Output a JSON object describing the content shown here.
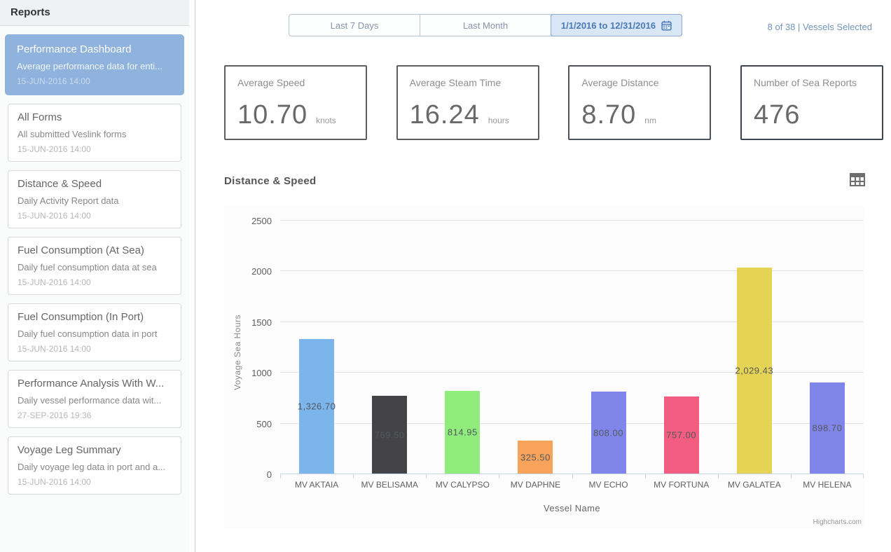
{
  "sidebar": {
    "title": "Reports",
    "items": [
      {
        "title": "Performance Dashboard",
        "subtitle": "Average performance data for enti...",
        "date": "15-JUN-2016 14:00"
      },
      {
        "title": "All Forms",
        "subtitle": "All submitted Veslink forms",
        "date": "15-JUN-2016 14:00"
      },
      {
        "title": "Distance & Speed",
        "subtitle": "Daily Activity Report data",
        "date": "15-JUN-2016 14:00"
      },
      {
        "title": "Fuel Consumption (At Sea)",
        "subtitle": "Daily fuel consumption data at sea",
        "date": "15-JUN-2016 14:00"
      },
      {
        "title": "Fuel Consumption (In Port)",
        "subtitle": "Daily fuel consumption data in port",
        "date": "15-JUN-2016 14:00"
      },
      {
        "title": "Performance Analysis With W...",
        "subtitle": "Daily vessel performance data wit...",
        "date": "27-SEP-2016 19:36"
      },
      {
        "title": "Voyage Leg Summary",
        "subtitle": "Daily voyage leg data in port and a...",
        "date": "15-JUN-2016 14:00"
      }
    ]
  },
  "toolbar": {
    "buttons": [
      {
        "label": "Last 7 Days"
      },
      {
        "label": "Last Month"
      },
      {
        "label": "1/1/2016 to 12/31/2016"
      }
    ],
    "vessels_selected": "8 of 38 | Vessels Selected",
    "accent_color": "#4a7ab5"
  },
  "kpis": [
    {
      "label": "Average Speed",
      "value": "10.70",
      "unit": "knots",
      "border_color": "#5e5e5e"
    },
    {
      "label": "Average Steam Time",
      "value": "16.24",
      "unit": "hours",
      "border_color": "#5e5e5e"
    },
    {
      "label": "Average Distance",
      "value": "8.70",
      "unit": "nm",
      "border_color": "#4d535e"
    },
    {
      "label": "Number of Sea Reports",
      "value": "476",
      "unit": "",
      "border_color": "#3e4654"
    }
  ],
  "chart_section": {
    "title": "Distance & Speed"
  },
  "chart_data": {
    "type": "bar",
    "title": "",
    "xlabel": "Vessel Name",
    "ylabel": "Voyage Sea Hours",
    "ylim": [
      0,
      2500
    ],
    "yticks": [
      0,
      500,
      1000,
      1500,
      2000,
      2500
    ],
    "grid": true,
    "legend": "none",
    "categories": [
      "MV AKTAIA",
      "MV BELISAMA",
      "MV CALYPSO",
      "MV DAPHNE",
      "MV ECHO",
      "MV FORTUNA",
      "MV GALATEA",
      "MV HELENA"
    ],
    "values": [
      1326.7,
      769.5,
      814.95,
      325.5,
      808.0,
      757.0,
      2029.43,
      898.7
    ],
    "data_labels": [
      "1,326.70",
      "769.50",
      "814.95",
      "325.50",
      "808.00",
      "757.00",
      "2,029.43",
      "898.70"
    ],
    "bar_colors": [
      "#7cb5ec",
      "#434348",
      "#90ed7d",
      "#f7a35c",
      "#8085e9",
      "#f15c80",
      "#e4d354",
      "#8085e9"
    ],
    "credit": "Highcharts.com"
  }
}
